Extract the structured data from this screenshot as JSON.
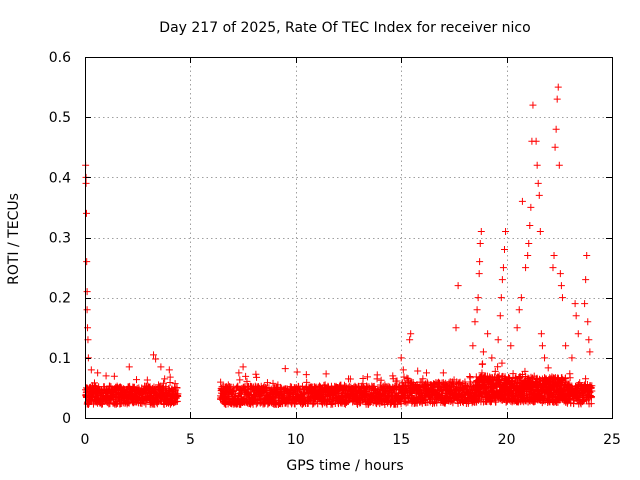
{
  "chart_data": {
    "type": "scatter",
    "title": "Day 217 of 2025, Rate Of TEC Index for receiver nico",
    "xlabel": "GPS time / hours",
    "ylabel": "ROTI / TECUs",
    "xlim": [
      0,
      25
    ],
    "ylim": [
      0,
      0.6
    ],
    "xticks": [
      0,
      5,
      10,
      15,
      20,
      25
    ],
    "yticks": [
      0,
      0.1,
      0.2,
      0.3,
      0.4,
      0.5,
      0.6
    ],
    "xtick_labels": [
      "0",
      "5",
      "10",
      "15",
      "20",
      "25"
    ],
    "ytick_labels": [
      "0",
      "0.1",
      "0.2",
      "0.3",
      "0.4",
      "0.5",
      "0.6"
    ],
    "grid": true,
    "marker": "+",
    "color": "#ff0000",
    "data_gap_hours": [
      4.4,
      6.4
    ],
    "series": [
      {
        "name": "ROTI",
        "points": [
          [
            0.03,
            0.42
          ],
          [
            0.05,
            0.4
          ],
          [
            0.07,
            0.34
          ],
          [
            0.08,
            0.26
          ],
          [
            0.1,
            0.21
          ],
          [
            0.1,
            0.18
          ],
          [
            0.12,
            0.15
          ],
          [
            0.14,
            0.13
          ],
          [
            0.16,
            0.1
          ],
          [
            0.05,
            0.39
          ],
          [
            0.3,
            0.08
          ],
          [
            0.6,
            0.075
          ],
          [
            1.0,
            0.07
          ],
          [
            2.1,
            0.085
          ],
          [
            3.25,
            0.105
          ],
          [
            3.35,
            0.098
          ],
          [
            3.6,
            0.085
          ],
          [
            4.0,
            0.08
          ],
          [
            6.8,
            0.055
          ],
          [
            7.3,
            0.075
          ],
          [
            7.5,
            0.085
          ],
          [
            9.5,
            0.082
          ],
          [
            10.5,
            0.072
          ],
          [
            12.5,
            0.065
          ],
          [
            14.6,
            0.07
          ],
          [
            15.0,
            0.1
          ],
          [
            15.1,
            0.08
          ],
          [
            15.4,
            0.13
          ],
          [
            15.45,
            0.14
          ],
          [
            16.2,
            0.075
          ],
          [
            17.0,
            0.075
          ],
          [
            17.6,
            0.15
          ],
          [
            17.7,
            0.22
          ],
          [
            18.4,
            0.12
          ],
          [
            18.5,
            0.16
          ],
          [
            18.6,
            0.18
          ],
          [
            18.65,
            0.2
          ],
          [
            18.7,
            0.24
          ],
          [
            18.72,
            0.26
          ],
          [
            18.75,
            0.29
          ],
          [
            18.8,
            0.31
          ],
          [
            18.9,
            0.11
          ],
          [
            19.1,
            0.14
          ],
          [
            19.3,
            0.1
          ],
          [
            19.6,
            0.13
          ],
          [
            19.7,
            0.17
          ],
          [
            19.75,
            0.2
          ],
          [
            19.8,
            0.23
          ],
          [
            19.85,
            0.25
          ],
          [
            19.9,
            0.28
          ],
          [
            19.95,
            0.31
          ],
          [
            20.2,
            0.12
          ],
          [
            20.5,
            0.15
          ],
          [
            20.6,
            0.18
          ],
          [
            20.7,
            0.2
          ],
          [
            20.75,
            0.36
          ],
          [
            20.9,
            0.25
          ],
          [
            21.0,
            0.27
          ],
          [
            21.05,
            0.29
          ],
          [
            21.1,
            0.32
          ],
          [
            21.15,
            0.35
          ],
          [
            21.2,
            0.46
          ],
          [
            21.25,
            0.52
          ],
          [
            21.4,
            0.46
          ],
          [
            21.45,
            0.42
          ],
          [
            21.5,
            0.39
          ],
          [
            21.55,
            0.37
          ],
          [
            21.6,
            0.31
          ],
          [
            21.65,
            0.14
          ],
          [
            21.7,
            0.12
          ],
          [
            21.8,
            0.1
          ],
          [
            22.2,
            0.25
          ],
          [
            22.25,
            0.27
          ],
          [
            22.3,
            0.45
          ],
          [
            22.35,
            0.48
          ],
          [
            22.4,
            0.53
          ],
          [
            22.45,
            0.55
          ],
          [
            22.5,
            0.42
          ],
          [
            22.55,
            0.24
          ],
          [
            22.6,
            0.22
          ],
          [
            22.65,
            0.2
          ],
          [
            22.8,
            0.12
          ],
          [
            23.1,
            0.1
          ],
          [
            23.25,
            0.19
          ],
          [
            23.3,
            0.17
          ],
          [
            23.4,
            0.14
          ],
          [
            23.7,
            0.19
          ],
          [
            23.75,
            0.23
          ],
          [
            23.8,
            0.27
          ],
          [
            23.85,
            0.16
          ],
          [
            23.9,
            0.13
          ],
          [
            23.95,
            0.11
          ]
        ]
      }
    ]
  }
}
